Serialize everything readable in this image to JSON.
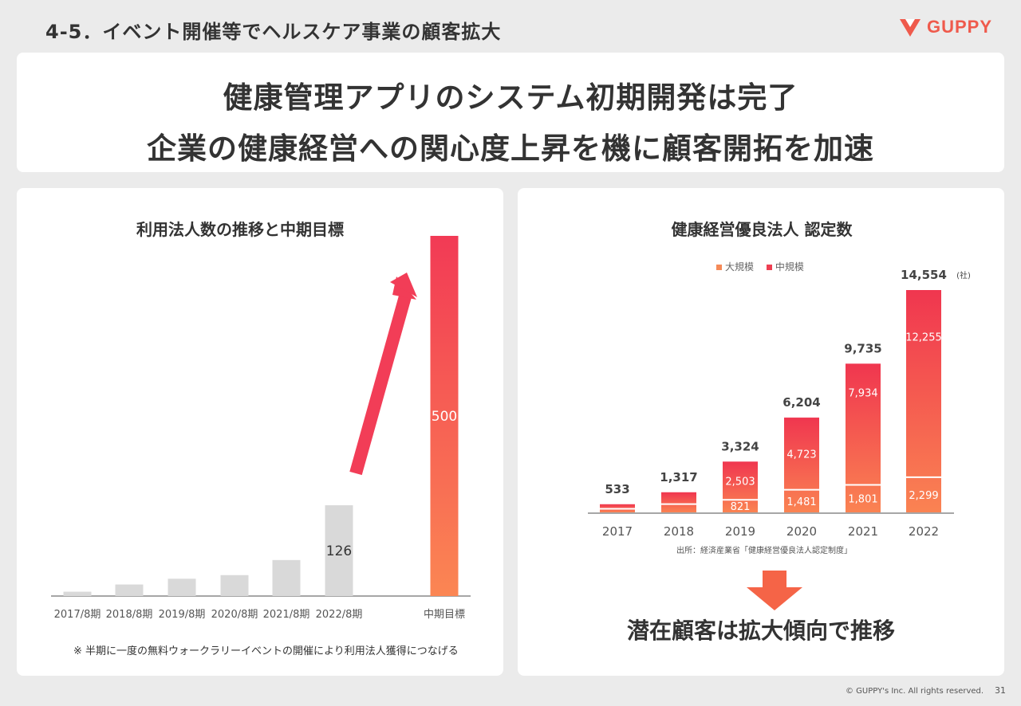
{
  "header": {
    "section_title": "4-5．イベント開催等でヘルスケア事業の顧客拡大",
    "logo_text": "GUPPY"
  },
  "headline": {
    "line1": "健康管理アプリのシステム初期開発は完了",
    "line2": "企業の健康経営への関心度上昇を機に顧客開拓を加速"
  },
  "left_chart": {
    "note": "※ 半期に一度の無料ウォークラリーイベントの開催により利用法人獲得につなげる",
    "target_label_value": "500"
  },
  "right_chart": {
    "legend": [
      "大規模",
      "中規模"
    ],
    "source": "出所：経済産業省「健康経営優良法人認定制度」",
    "unit": "(社)"
  },
  "colors": {
    "gradient_top": "#f23a55",
    "gradient_bottom": "#fb8653",
    "grey_bar": "#d9d9d9",
    "large_legend": "#f58a58",
    "medium_legend": "#ee3f52"
  },
  "chart_data": [
    {
      "type": "bar",
      "title": "利用法人数の推移と中期目標",
      "categories": [
        "2017/8期",
        "2018/8期",
        "2019/8期",
        "2020/8期",
        "2021/8期",
        "2022/8期",
        "中期目標"
      ],
      "values": [
        6,
        16,
        24,
        29,
        50,
        126,
        500
      ],
      "data_labels": [
        "",
        "",
        "",
        "",
        "",
        "126",
        "500"
      ],
      "ylim": [
        0,
        500
      ],
      "grid": false
    },
    {
      "type": "bar",
      "title": "健康経営優良法人 認定数",
      "categories": [
        "2017",
        "2018",
        "2019",
        "2020",
        "2021",
        "2022"
      ],
      "series": [
        {
          "name": "大規模",
          "values": [
            235,
            541,
            821,
            1481,
            1801,
            2299
          ],
          "labels": [
            "",
            "",
            "821",
            "1,481",
            "1,801",
            "2,299"
          ]
        },
        {
          "name": "中規模",
          "values": [
            298,
            776,
            2503,
            4723,
            7934,
            12255
          ],
          "labels": [
            "",
            "",
            "2,503",
            "4,723",
            "7,934",
            "12,255"
          ]
        }
      ],
      "totals": [
        "533",
        "1,317",
        "3,324",
        "6,204",
        "9,735",
        "14,554"
      ],
      "total_values": [
        533,
        1317,
        3324,
        6204,
        9735,
        14554
      ],
      "ylim": [
        0,
        14554
      ],
      "stacked": true,
      "grid": false
    }
  ],
  "conclusion": "潜在顧客は拡大傾向で推移",
  "footer": {
    "copyright": "© GUPPY's Inc. All rights reserved.",
    "page": "31"
  }
}
